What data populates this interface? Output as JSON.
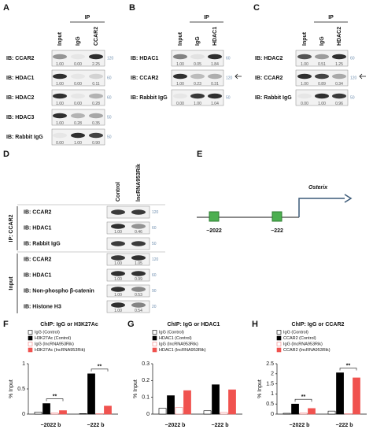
{
  "blots": [
    {
      "letter": "A",
      "ip": "IP",
      "lanes": [
        "Input",
        "IgG",
        "CCAR2"
      ],
      "rows": [
        {
          "label": "IB: CCAR2",
          "mw": "120",
          "quant": [
            "1.00",
            "0.00",
            "2.25"
          ]
        },
        {
          "label": "IB: HDAC1",
          "mw": "60",
          "quant": [
            "1.00",
            "0.00",
            "0.11"
          ]
        },
        {
          "label": "IB: HDAC2",
          "mw": "60",
          "quant": [
            "1.00",
            "0.00",
            "0.28"
          ]
        },
        {
          "label": "IB: HDAC3",
          "mw": "50",
          "quant": [
            "1.00",
            "0.28",
            "0.35"
          ]
        },
        {
          "label": "IB: Rabbit IgG",
          "mw": "50",
          "quant": [
            "0.00",
            "1.00",
            "0.90"
          ]
        }
      ]
    },
    {
      "letter": "B",
      "ip": "IP",
      "lanes": [
        "Input",
        "IgG",
        "HDAC1"
      ],
      "rows": [
        {
          "label": "IB: HDAC1",
          "mw": "60",
          "quant": [
            "1.00",
            "0.05",
            "1.84"
          ]
        },
        {
          "label": "IB: CCAR2",
          "mw": "120",
          "quant": [
            "1.00",
            "0.23",
            "0.31"
          ]
        },
        {
          "label": "IB: Rabbit IgG",
          "mw": "50",
          "quant": [
            "0.00",
            "1.00",
            "1.04"
          ]
        }
      ]
    },
    {
      "letter": "C",
      "ip": "IP",
      "lanes": [
        "Input",
        "IgG",
        "HDAC2"
      ],
      "rows": [
        {
          "label": "IB: HDAC2",
          "mw": "60",
          "quant": [
            "1.00",
            "0.51",
            "1.25"
          ]
        },
        {
          "label": "IB: CCAR2",
          "mw": "120",
          "quant": [
            "1.00",
            "0.89",
            "0.34"
          ]
        },
        {
          "label": "IB: Rabbit IgG",
          "mw": "50",
          "quant": [
            "0.00",
            "1.00",
            "0.96"
          ]
        }
      ]
    },
    {
      "letter": "D",
      "lanes": [
        "Control",
        "lncRNA953Rik"
      ],
      "groups": [
        {
          "label": "IP: CCAR2",
          "rows": [
            {
              "label": "IB: CCAR2",
              "mw": "120"
            },
            {
              "label": "IB: HDAC1",
              "mw": "60",
              "quant": [
                "1.00",
                "0.46"
              ]
            },
            {
              "label": "IB: Rabbit IgG",
              "mw": "50"
            }
          ]
        },
        {
          "label": "Input",
          "rows": [
            {
              "label": "IB: CCAR2",
              "mw": "120",
              "quant": [
                "1.00",
                "1.05"
              ]
            },
            {
              "label": "IB: HDAC1",
              "mw": "60",
              "quant": [
                "1.00",
                "0.99"
              ]
            },
            {
              "label": "IB: Non-phospho β-catenin",
              "mw": "90",
              "quant": [
                "1.00",
                "0.53"
              ]
            },
            {
              "label": "IB: Histone H3",
              "mw": "20",
              "quant": [
                "1.00",
                "0.54"
              ]
            }
          ]
        }
      ]
    }
  ],
  "diagram": {
    "letter": "E",
    "gene": "Osterix",
    "sites": [
      "−2022",
      "−222"
    ]
  },
  "chart_data": [
    {
      "type": "bar",
      "letter": "F",
      "title": "ChIP: IgG or H3K27Ac",
      "ylabel": "% Input",
      "categories": [
        "−2022 b",
        "−222 b"
      ],
      "ylim": [
        0,
        1
      ],
      "yticks": [
        0,
        0.5,
        1
      ],
      "series": [
        {
          "name": "IgG (Control)",
          "color": "#ffffff",
          "edgecolor": "#000000",
          "values": [
            0.04,
            0.01
          ]
        },
        {
          "name": "H3K27Ac (Control)",
          "color": "#000000",
          "edgecolor": "#000000",
          "values": [
            0.21,
            0.8
          ]
        },
        {
          "name": "IgG (lncRNA953Rik)",
          "color": "#ffffff",
          "edgecolor": "#f08080",
          "values": [
            0.02,
            0.01
          ]
        },
        {
          "name": "H3K27Ac (lncRNA953Rik)",
          "color": "#f0524f",
          "edgecolor": "#f0524f",
          "values": [
            0.07,
            0.16
          ]
        }
      ],
      "annotations": [
        {
          "text": "**",
          "category": 0
        },
        {
          "text": "**",
          "category": 1
        }
      ]
    },
    {
      "type": "bar",
      "letter": "G",
      "title": "ChIP: IgG or HDAC1",
      "ylabel": "% Input",
      "categories": [
        "−2022 b",
        "−222 b"
      ],
      "ylim": [
        0,
        0.3
      ],
      "yticks": [
        0,
        0.1,
        0.2,
        0.3
      ],
      "series": [
        {
          "name": "IgG (Control)",
          "color": "#ffffff",
          "edgecolor": "#000000",
          "values": [
            0.035,
            0.02
          ]
        },
        {
          "name": "HDAC1 (Control)",
          "color": "#000000",
          "edgecolor": "#000000",
          "values": [
            0.11,
            0.175
          ]
        },
        {
          "name": "IgG (lncRNA953Rik)",
          "color": "#ffffff",
          "edgecolor": "#f08080",
          "values": [
            0.04,
            0.01
          ]
        },
        {
          "name": "HDAC1 (lncRNA953Rik)",
          "color": "#f0524f",
          "edgecolor": "#f0524f",
          "values": [
            0.14,
            0.145
          ]
        }
      ],
      "annotations": []
    },
    {
      "type": "bar",
      "letter": "H",
      "title": "ChIP: IgG or CCAR2",
      "ylabel": "% Input",
      "categories": [
        "−2022 b",
        "−222 b"
      ],
      "ylim": [
        0,
        2.5
      ],
      "yticks": [
        0,
        0.5,
        1,
        1.5,
        2,
        2.5
      ],
      "series": [
        {
          "name": "IgG (Control)",
          "color": "#ffffff",
          "edgecolor": "#000000",
          "values": [
            0.04,
            0.15
          ]
        },
        {
          "name": "CCAR2 (Control)",
          "color": "#000000",
          "edgecolor": "#000000",
          "values": [
            0.5,
            2.05
          ]
        },
        {
          "name": "IgG (lncRNA953Rik)",
          "color": "#ffffff",
          "edgecolor": "#f08080",
          "values": [
            0.05,
            0.02
          ]
        },
        {
          "name": "CCAR2 (lncRNA953Rik)",
          "color": "#f0524f",
          "edgecolor": "#f0524f",
          "values": [
            0.28,
            1.8
          ]
        }
      ],
      "annotations": [
        {
          "text": "**",
          "category": 0
        },
        {
          "text": "**",
          "category": 1
        }
      ]
    }
  ]
}
